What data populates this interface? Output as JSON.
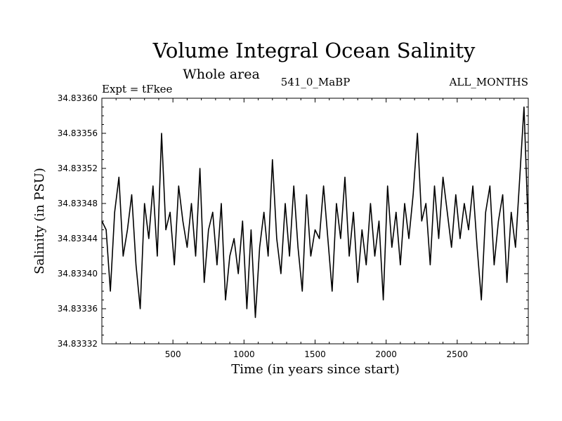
{
  "chart_data": {
    "type": "line",
    "title": "Volume Integral Ocean Salinity",
    "subtitle": "Whole area",
    "annotations": {
      "left": "Expt = tFkee",
      "center": "541_0_MaBP",
      "right": "ALL_MONTHS"
    },
    "xlabel": "Time (in years since start)",
    "ylabel": "Salinity (in PSU)",
    "xlim": [
      0,
      3000
    ],
    "ylim": [
      34.83332,
      34.8336
    ],
    "x_ticks": [
      "500",
      "1000",
      "1500",
      "2000",
      "2500"
    ],
    "x_tick_values": [
      500,
      1000,
      1500,
      2000,
      2500
    ],
    "y_ticks": [
      "34.83332",
      "34.83336",
      "34.83340",
      "34.83344",
      "34.83348",
      "34.83352",
      "34.83356",
      "34.83360"
    ],
    "y_tick_values": [
      34.83332,
      34.83336,
      34.8334,
      34.83344,
      34.83348,
      34.83352,
      34.83356,
      34.8336
    ],
    "grid": false,
    "legend": "none",
    "line_color": "#000000",
    "series": [
      {
        "x": [
          0,
          30,
          60,
          90,
          120,
          150,
          180,
          210,
          240,
          270,
          300,
          330,
          360,
          390,
          420,
          450,
          480,
          510,
          540,
          570,
          600,
          630,
          660,
          690,
          720,
          750,
          780,
          810,
          840,
          870,
          900,
          930,
          960,
          990,
          1020,
          1050,
          1080,
          1110,
          1140,
          1170,
          1200,
          1230,
          1260,
          1290,
          1320,
          1350,
          1380,
          1410,
          1440,
          1470,
          1500,
          1530,
          1560,
          1590,
          1620,
          1650,
          1680,
          1710,
          1740,
          1770,
          1800,
          1830,
          1860,
          1890,
          1920,
          1950,
          1980,
          2010,
          2040,
          2070,
          2100,
          2130,
          2160,
          2190,
          2220,
          2250,
          2280,
          2310,
          2340,
          2370,
          2400,
          2430,
          2460,
          2490,
          2520,
          2550,
          2580,
          2610,
          2640,
          2670,
          2700,
          2730,
          2760,
          2790,
          2820,
          2850,
          2880,
          2910,
          2940,
          2970,
          3000
        ],
        "values": [
          34.83346,
          34.83345,
          34.83338,
          34.83347,
          34.83351,
          34.83342,
          34.83345,
          34.83349,
          34.83341,
          34.83336,
          34.83348,
          34.83344,
          34.8335,
          34.83342,
          34.83356,
          34.83345,
          34.83347,
          34.83341,
          34.8335,
          34.83346,
          34.83343,
          34.83348,
          34.83342,
          34.83352,
          34.83339,
          34.83345,
          34.83347,
          34.83341,
          34.83348,
          34.83337,
          34.83342,
          34.83344,
          34.8334,
          34.83346,
          34.83336,
          34.83345,
          34.83335,
          34.83343,
          34.83347,
          34.83342,
          34.83353,
          34.83344,
          34.8334,
          34.83348,
          34.83342,
          34.8335,
          34.83343,
          34.83338,
          34.83349,
          34.83342,
          34.83345,
          34.83344,
          34.8335,
          34.83344,
          34.83338,
          34.83348,
          34.83344,
          34.83351,
          34.83342,
          34.83347,
          34.83339,
          34.83345,
          34.83341,
          34.83348,
          34.83342,
          34.83346,
          34.83337,
          34.8335,
          34.83343,
          34.83347,
          34.83341,
          34.83348,
          34.83344,
          34.83349,
          34.83356,
          34.83346,
          34.83348,
          34.83341,
          34.8335,
          34.83344,
          34.83351,
          34.83347,
          34.83343,
          34.83349,
          34.83344,
          34.83348,
          34.83345,
          34.8335,
          34.83343,
          34.83337,
          34.83347,
          34.8335,
          34.83341,
          34.83346,
          34.83349,
          34.83339,
          34.83347,
          34.83343,
          34.83351,
          34.83359,
          34.83345
        ]
      }
    ]
  }
}
